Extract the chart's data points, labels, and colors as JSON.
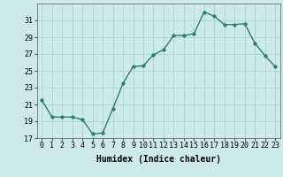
{
  "x": [
    0,
    1,
    2,
    3,
    4,
    5,
    6,
    7,
    8,
    9,
    10,
    11,
    12,
    13,
    14,
    15,
    16,
    17,
    18,
    19,
    20,
    21,
    22,
    23
  ],
  "y": [
    21.5,
    19.5,
    19.5,
    19.5,
    19.2,
    17.5,
    17.6,
    20.5,
    23.5,
    25.5,
    25.6,
    26.9,
    27.5,
    29.2,
    29.2,
    29.4,
    32.0,
    31.5,
    30.5,
    30.5,
    30.6,
    28.3,
    26.8,
    25.5
  ],
  "line_color": "#2e7d6e",
  "marker": "D",
  "marker_size": 1.8,
  "bg_color": "#cceae7",
  "grid_color": "#aad4d0",
  "tick_color": "#333333",
  "xlabel": "Humidex (Indice chaleur)",
  "ylim": [
    17,
    33
  ],
  "xlim": [
    -0.5,
    23.5
  ],
  "yticks": [
    17,
    19,
    21,
    23,
    25,
    27,
    29,
    31
  ],
  "xtick_labels": [
    "0",
    "1",
    "2",
    "3",
    "4",
    "5",
    "6",
    "7",
    "8",
    "9",
    "10",
    "11",
    "12",
    "13",
    "14",
    "15",
    "16",
    "17",
    "18",
    "19",
    "20",
    "21",
    "22",
    "23"
  ],
  "xlabel_fontsize": 7.0,
  "tick_fontsize": 6.0,
  "line_width": 1.0
}
